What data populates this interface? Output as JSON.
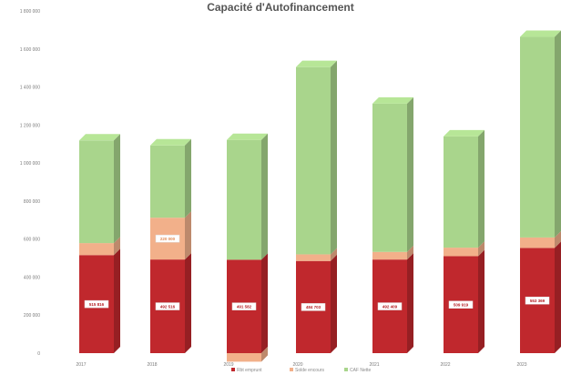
{
  "chart_data": {
    "type": "bar",
    "stacked": true,
    "title": "Capacité d'Autofinancement",
    "categories": [
      "2017",
      "2018",
      "2019",
      "2020",
      "2021",
      "2022",
      "2023"
    ],
    "ylim": [
      0,
      1800000
    ],
    "yticks": [
      "0",
      "200 000",
      "400 000",
      "600 000",
      "800 000",
      "1 000 000",
      "1 200 000",
      "1 400 000",
      "1 600 000",
      "1 800 000"
    ],
    "legend_position": "bottom",
    "series": [
      {
        "name": "Rbt emprunt",
        "color": "#c0282d",
        "values": [
          515816,
          492516,
          491582,
          484703,
          492409,
          509919,
          553369
        ],
        "labels": [
          "515 816",
          "492 516",
          "491 582",
          "484 703",
          "492 409",
          "509 919",
          "553 369"
        ]
      },
      {
        "name": "Solde encours",
        "color": "#f2b08a",
        "values": [
          63000,
          220000,
          -45000,
          35000,
          40000,
          45000,
          55000
        ],
        "labels": [
          "",
          "220 000",
          "",
          "",
          "",
          "",
          ""
        ]
      },
      {
        "name": "CAF Nette",
        "color": "#a9d58c",
        "values": [
          540000,
          380000,
          630000,
          985000,
          780000,
          585000,
          1055000
        ],
        "labels": [
          "",
          "",
          "",
          "",
          "",
          "",
          ""
        ]
      }
    ],
    "segment_labels": [
      [
        "515 816",
        "",
        ""
      ],
      [
        "492 516",
        "220 000",
        ""
      ],
      [
        "491 582",
        "",
        ""
      ],
      [
        "484 703",
        "",
        ""
      ],
      [
        "492 409",
        "",
        ""
      ],
      [
        "509 919",
        "",
        ""
      ],
      [
        "553 369",
        "",
        ""
      ]
    ]
  }
}
